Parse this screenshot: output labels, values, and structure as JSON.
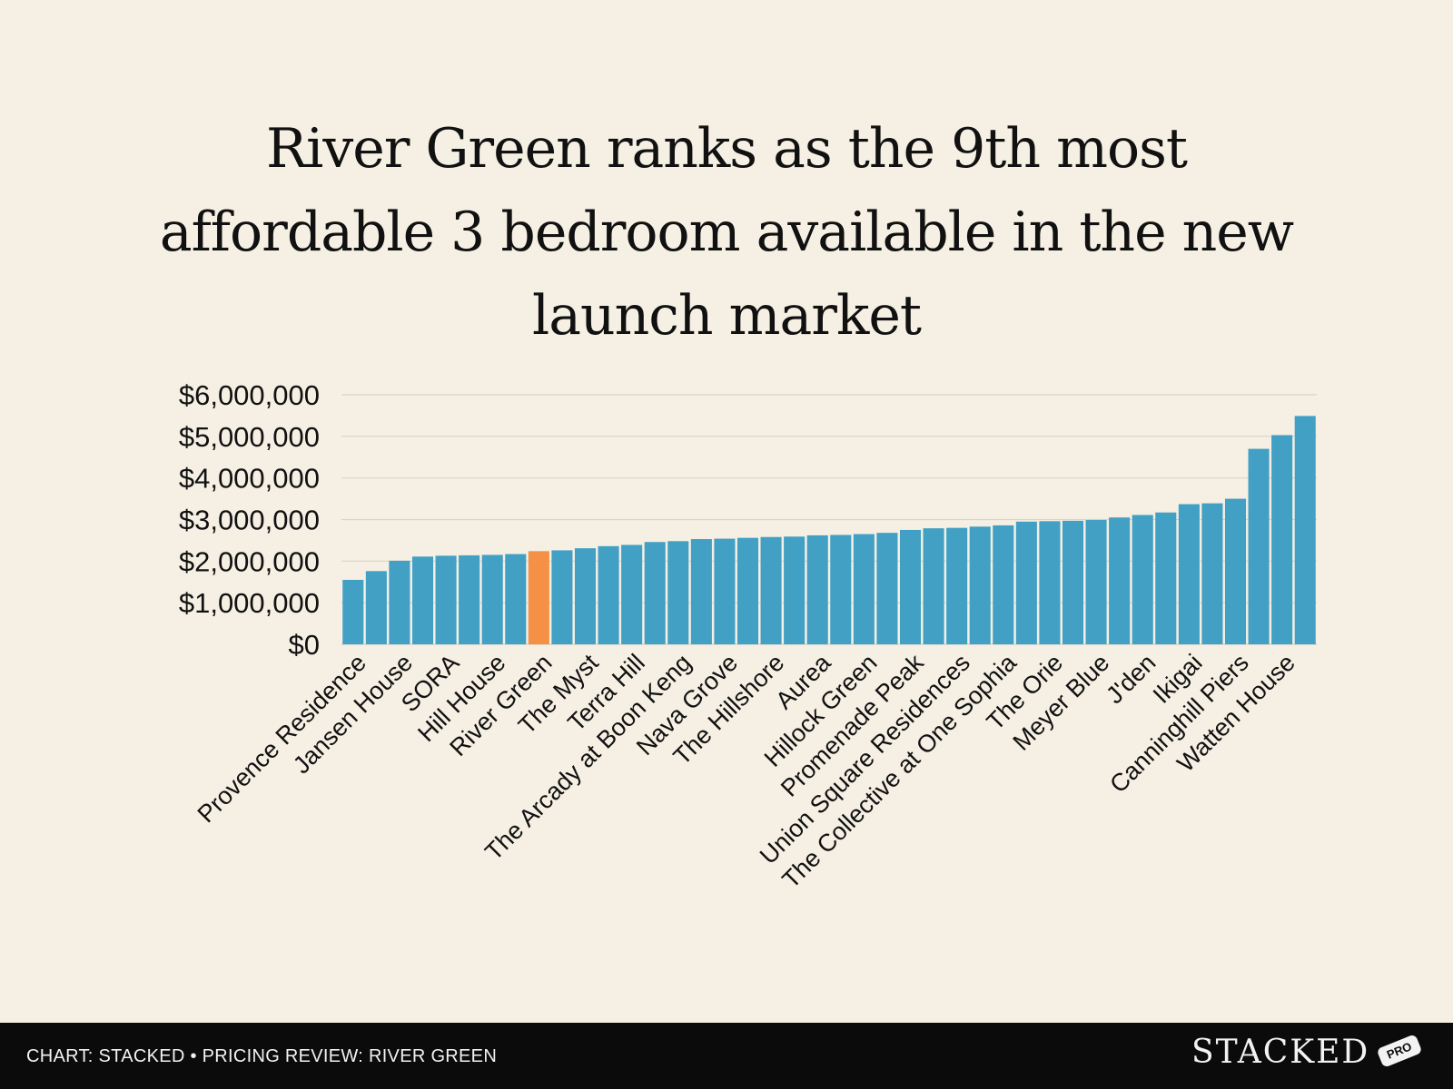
{
  "chart_data": {
    "type": "bar",
    "title": "River Green ranks as the 9th most affordable 3 bedroom available in the new launch market",
    "xlabel": "",
    "ylabel": "",
    "ylim": [
      0,
      6000000
    ],
    "y_ticks": [
      0,
      1000000,
      2000000,
      3000000,
      4000000,
      5000000,
      6000000
    ],
    "y_tick_labels": [
      "$0",
      "$1,000,000",
      "$2,000,000",
      "$3,000,000",
      "$4,000,000",
      "$5,000,000",
      "$6,000,000"
    ],
    "grid": true,
    "categories": [
      "Provence Residence",
      "",
      "Jansen House",
      "",
      "SORA",
      "",
      "Hill House",
      "",
      "River Green",
      "",
      "The Myst",
      "",
      "Terra Hill",
      "",
      "The Arcady at Boon Keng",
      "",
      "Nava Grove",
      "",
      "The Hillshore",
      "",
      "Aurea",
      "",
      "Hillock Green",
      "",
      "Promenade Peak",
      "",
      "Union Square Residences",
      "",
      "The Collective at One Sophia",
      "",
      "The Orie",
      "",
      "Meyer Blue",
      "",
      "J'den",
      "",
      "Ikigai",
      "",
      "Canninghill Piers",
      "",
      "Watten House",
      ""
    ],
    "values": [
      1550000,
      1760000,
      2010000,
      2110000,
      2130000,
      2140000,
      2150000,
      2170000,
      2240000,
      2260000,
      2310000,
      2360000,
      2390000,
      2460000,
      2480000,
      2530000,
      2540000,
      2560000,
      2580000,
      2590000,
      2620000,
      2630000,
      2650000,
      2680000,
      2750000,
      2790000,
      2800000,
      2830000,
      2860000,
      2950000,
      2960000,
      2970000,
      2990000,
      3050000,
      3110000,
      3170000,
      3370000,
      3390000,
      3500000,
      4700000,
      5030000,
      5490000
    ],
    "highlight": "River Green",
    "bar_color": "#41a0c4",
    "highlight_color": "#f49146",
    "grid_color": "#d9d4c8"
  },
  "footer": {
    "caption": "CHART: STACKED • PRICING REVIEW: RIVER GREEN",
    "brand": "STACKED",
    "badge": "PRO"
  }
}
